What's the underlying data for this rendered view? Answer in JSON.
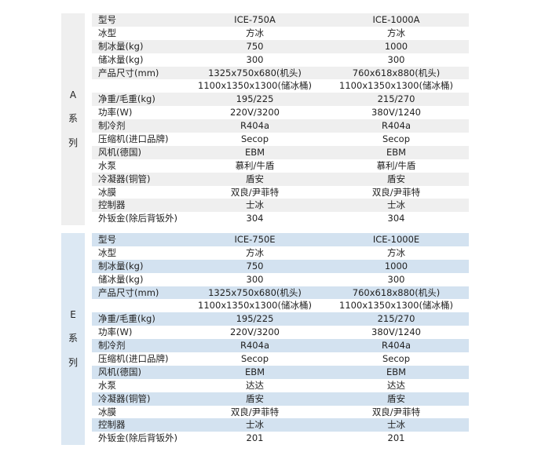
{
  "series": [
    {
      "side_label": [
        "A",
        "系",
        "列"
      ],
      "rows": [
        [
          "型号",
          "ICE-750A",
          "ICE-1000A"
        ],
        [
          "冰型",
          "方冰",
          "方冰"
        ],
        [
          "制冰量(kg)",
          "750",
          "1000"
        ],
        [
          "储冰量(kg)",
          "300",
          "300"
        ],
        [
          "产品尺寸(mm)",
          "1325x750x680(机头)",
          "760x618x880(机头)"
        ],
        [
          "",
          "1100x1350x1300(储冰桶)",
          "1100x1350x1300(储冰桶)"
        ],
        [
          "净重/毛重(kg)",
          "195/225",
          "215/270"
        ],
        [
          "功率(W)",
          "220V/3200",
          "380V/1240"
        ],
        [
          "制冷剂",
          "R404a",
          "R404a"
        ],
        [
          "压缩机(进口品牌)",
          "Secop",
          "Secop"
        ],
        [
          "风机(德国)",
          "EBM",
          "EBM"
        ],
        [
          "水泵",
          "慕利/牛盾",
          "慕利/牛盾"
        ],
        [
          "冷凝器(铜管)",
          "盾安",
          "盾安"
        ],
        [
          "冰膜",
          "双良/尹菲特",
          "双良/尹菲特"
        ],
        [
          "控制器",
          "士冰",
          "士冰"
        ],
        [
          "外钣金(除后背钣外)",
          "304",
          "304"
        ]
      ]
    },
    {
      "side_label": [
        "E",
        "系",
        "列"
      ],
      "rows": [
        [
          "型号",
          "ICE-750E",
          "ICE-1000E"
        ],
        [
          "冰型",
          "方冰",
          "方冰"
        ],
        [
          "制冰量(kg)",
          "750",
          "1000"
        ],
        [
          "储冰量(kg)",
          "300",
          "300"
        ],
        [
          "产品尺寸(mm)",
          "1325x750x680(机头)",
          "760x618x880(机头)"
        ],
        [
          "",
          "1100x1350x1300(储冰桶)",
          "1100x1350x1300(储冰桶)"
        ],
        [
          "净重/毛重(kg)",
          "195/225",
          "215/270"
        ],
        [
          "功率(W)",
          "220V/3200",
          "380V/1240"
        ],
        [
          "制冷剂",
          "R404a",
          "R404a"
        ],
        [
          "压缩机(进口品牌)",
          "Secop",
          "Secop"
        ],
        [
          "风机(德国)",
          "EBM",
          "EBM"
        ],
        [
          "水泵",
          "达达",
          "达达"
        ],
        [
          "冷凝器(铜管)",
          "盾安",
          "盾安"
        ],
        [
          "冰膜",
          "双良/尹菲特",
          "双良/尹菲特"
        ],
        [
          "控制器",
          "士冰",
          "士冰"
        ],
        [
          "外钣金(除后背钣外)",
          "201",
          "201"
        ]
      ]
    }
  ],
  "colors": {
    "a_shade": "#efefef",
    "e_shade": "#d3e2f0"
  }
}
